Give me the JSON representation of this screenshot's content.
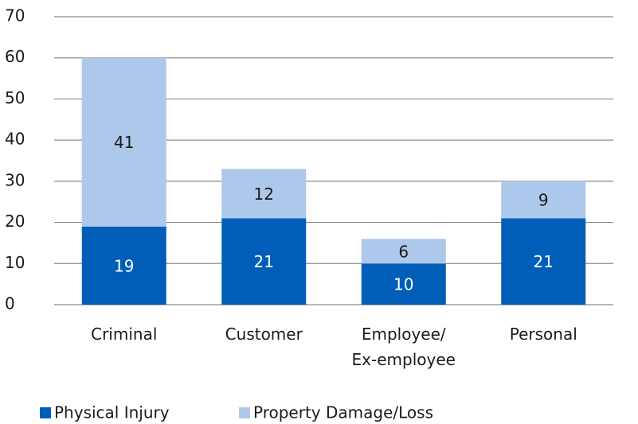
{
  "chart_data": {
    "type": "stacked_bar",
    "categories": [
      "Criminal",
      "Customer",
      "Employee/ Ex-employee",
      "Personal"
    ],
    "series": [
      {
        "name": "Physical Injury",
        "color": "#005eb8",
        "label_color": "#ffffff",
        "values": [
          19,
          21,
          10,
          21
        ]
      },
      {
        "name": "Property Damage/Loss",
        "color": "#adc8eb",
        "label_color": "#1a1a1a",
        "values": [
          41,
          12,
          6,
          9
        ]
      }
    ],
    "ylim": [
      0,
      70
    ],
    "yticks": [
      0,
      10,
      20,
      30,
      40,
      50,
      60,
      70
    ],
    "grid": true,
    "legend": "bottom"
  }
}
